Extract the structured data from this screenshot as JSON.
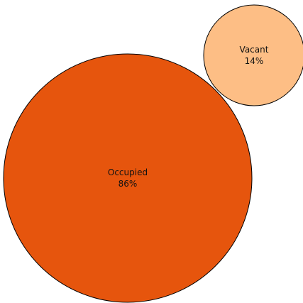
{
  "chart_data": {
    "type": "bubble",
    "title": "",
    "series": [
      {
        "name": "Occupied",
        "label": "Occupied",
        "value": 86,
        "value_text": "86%",
        "color": "#e6550d"
      },
      {
        "name": "Vacant",
        "label": "Vacant",
        "value": 14,
        "value_text": "14%",
        "color": "#fdbe85"
      }
    ]
  }
}
